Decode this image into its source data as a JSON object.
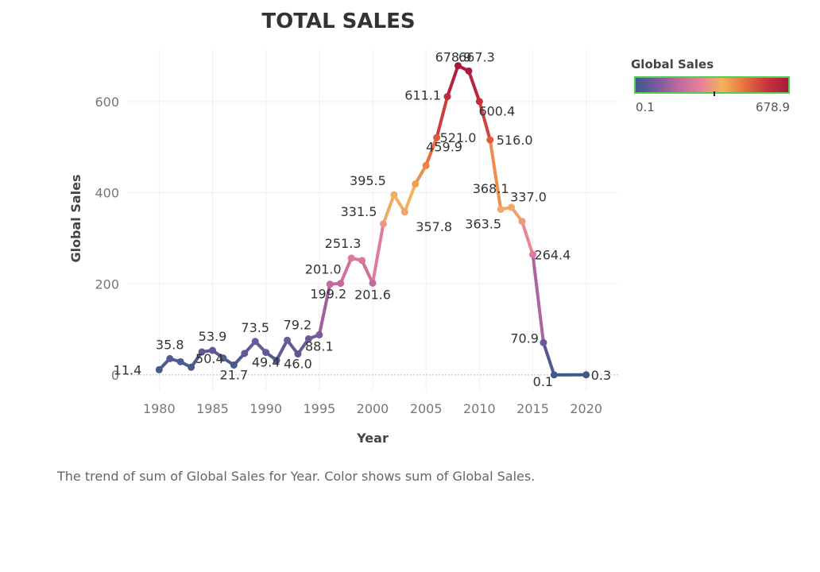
{
  "chart_data": {
    "type": "line",
    "title": "TOTAL SALES",
    "xlabel": "Year",
    "ylabel": "Global Sales",
    "caption": "The trend of sum of Global Sales for Year.  Color shows sum of Global Sales.",
    "xlim": [
      1977,
      2023
    ],
    "ylim": [
      -35,
      715
    ],
    "x_ticks": [
      1980,
      1985,
      1990,
      1995,
      2000,
      2005,
      2010,
      2015,
      2020
    ],
    "y_ticks": [
      0,
      200,
      400,
      600
    ],
    "grid": true,
    "legend": {
      "title": "Global Sales",
      "min_label": "0.1",
      "max_label": "678.9",
      "placement": "top-right"
    },
    "color_scale": [
      "#3e5a8a",
      "#7a5a9e",
      "#c0699e",
      "#e8829a",
      "#f2b35a",
      "#e8703e",
      "#c8343e",
      "#a8183e"
    ],
    "points": [
      {
        "x": 1980,
        "y": 11.4,
        "label": "11.4"
      },
      {
        "x": 1981,
        "y": 35.8,
        "label": "35.8"
      },
      {
        "x": 1982,
        "y": 28.9,
        "label": ""
      },
      {
        "x": 1983,
        "y": 16.8,
        "label": ""
      },
      {
        "x": 1984,
        "y": 50.4,
        "label": "50.4"
      },
      {
        "x": 1985,
        "y": 53.9,
        "label": "53.9"
      },
      {
        "x": 1986,
        "y": 37.1,
        "label": ""
      },
      {
        "x": 1987,
        "y": 21.7,
        "label": "21.7"
      },
      {
        "x": 1988,
        "y": 47.2,
        "label": ""
      },
      {
        "x": 1989,
        "y": 73.5,
        "label": "73.5"
      },
      {
        "x": 1990,
        "y": 49.4,
        "label": "49.4"
      },
      {
        "x": 1991,
        "y": 32.2,
        "label": ""
      },
      {
        "x": 1992,
        "y": 76.2,
        "label": ""
      },
      {
        "x": 1993,
        "y": 46.0,
        "label": "46.0"
      },
      {
        "x": 1994,
        "y": 79.2,
        "label": "79.2"
      },
      {
        "x": 1995,
        "y": 88.1,
        "label": "88.1"
      },
      {
        "x": 1996,
        "y": 199.2,
        "label": "199.2"
      },
      {
        "x": 1997,
        "y": 201.0,
        "label": "201.0"
      },
      {
        "x": 1998,
        "y": 256.5,
        "label": ""
      },
      {
        "x": 1999,
        "y": 251.3,
        "label": "251.3"
      },
      {
        "x": 2000,
        "y": 201.6,
        "label": "201.6"
      },
      {
        "x": 2001,
        "y": 331.5,
        "label": "331.5"
      },
      {
        "x": 2002,
        "y": 395.5,
        "label": "395.5"
      },
      {
        "x": 2003,
        "y": 357.8,
        "label": "357.8"
      },
      {
        "x": 2004,
        "y": 419.3,
        "label": ""
      },
      {
        "x": 2005,
        "y": 459.9,
        "label": "459.9"
      },
      {
        "x": 2006,
        "y": 521.0,
        "label": "521.0"
      },
      {
        "x": 2007,
        "y": 611.1,
        "label": "611.1"
      },
      {
        "x": 2008,
        "y": 678.9,
        "label": "678.9"
      },
      {
        "x": 2009,
        "y": 667.3,
        "label": "667.3"
      },
      {
        "x": 2010,
        "y": 600.4,
        "label": "600.4"
      },
      {
        "x": 2011,
        "y": 516.0,
        "label": "516.0"
      },
      {
        "x": 2012,
        "y": 363.5,
        "label": "363.5"
      },
      {
        "x": 2013,
        "y": 368.1,
        "label": "368.1"
      },
      {
        "x": 2014,
        "y": 337.0,
        "label": "337.0"
      },
      {
        "x": 2015,
        "y": 264.4,
        "label": "264.4"
      },
      {
        "x": 2016,
        "y": 70.9,
        "label": "70.9"
      },
      {
        "x": 2017,
        "y": 0.1,
        "label": "0.1"
      },
      {
        "x": 2020,
        "y": 0.3,
        "label": "0.3"
      }
    ]
  }
}
